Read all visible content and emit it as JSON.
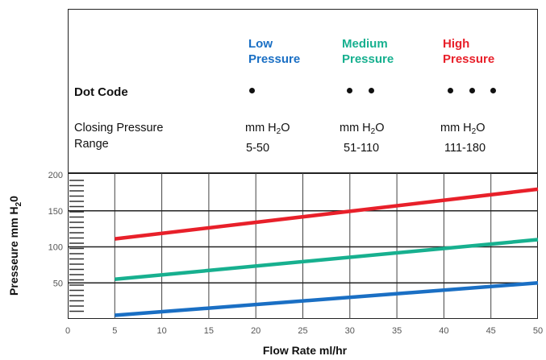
{
  "header": {
    "pressures": [
      {
        "line1": "Low",
        "line2": "Pressure",
        "color": "#1a6fc4"
      },
      {
        "line1": "Medium",
        "line2": "Pressure",
        "color": "#17b08f"
      },
      {
        "line1": "High",
        "line2": "Pressure",
        "color": "#e8202a"
      }
    ],
    "dot_code_label": "Dot Code",
    "dot_counts": [
      1,
      2,
      3
    ],
    "closing_label_1": "Closing Pressure",
    "closing_label_2": "Range",
    "unit_prefix": "mm H",
    "unit_sub": "2",
    "unit_suffix": "O",
    "ranges": [
      "5-50",
      "51-110",
      "111-180"
    ]
  },
  "chart_data": {
    "type": "line",
    "xlabel": "Flow Rate ml/hr",
    "ylabel_main": "Presseure mm H",
    "ylabel_sub": "2",
    "ylabel_end": "0",
    "xlim": [
      0,
      50
    ],
    "ylim": [
      0,
      200
    ],
    "xticks": [
      0,
      5,
      10,
      15,
      20,
      25,
      30,
      35,
      40,
      45,
      50
    ],
    "yticks": [
      50,
      100,
      150,
      200
    ],
    "grid": true,
    "series": [
      {
        "name": "Low Pressure",
        "color": "#1a6fc4",
        "x": [
          5,
          50
        ],
        "y": [
          5,
          50
        ]
      },
      {
        "name": "Medium Pressure",
        "color": "#17b08f",
        "x": [
          5,
          50
        ],
        "y": [
          55,
          110
        ]
      },
      {
        "name": "High Pressure",
        "color": "#e8202a",
        "x": [
          5,
          50
        ],
        "y": [
          111,
          180
        ]
      }
    ]
  }
}
